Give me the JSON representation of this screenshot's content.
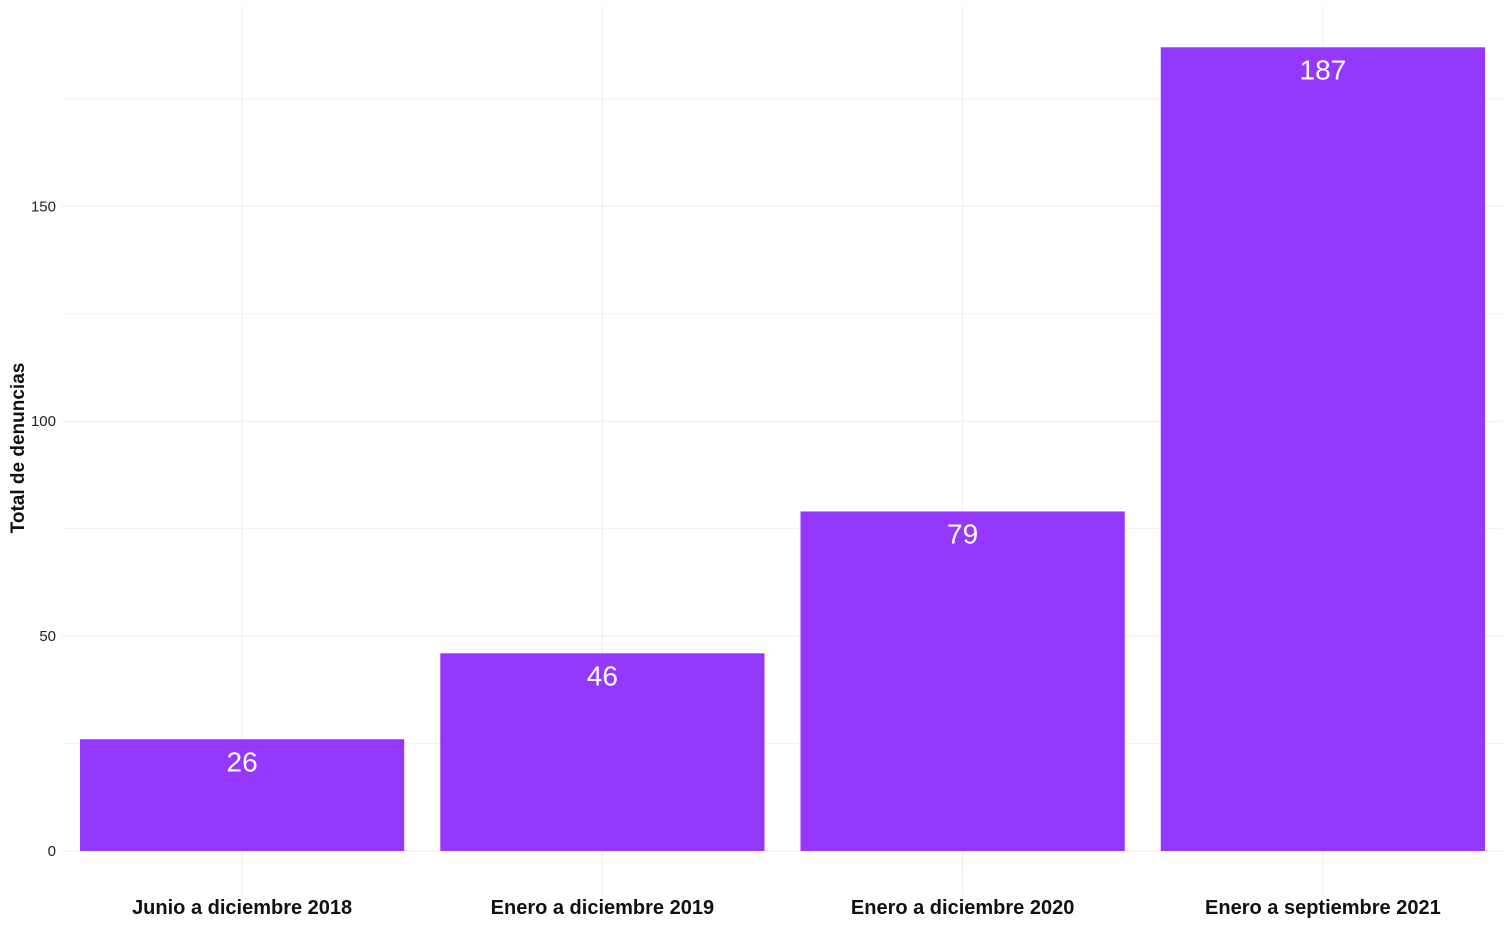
{
  "chart_data": {
    "type": "bar",
    "categories": [
      "Junio a diciembre 2018",
      "Enero a diciembre 2019",
      "Enero a diciembre 2020",
      "Enero a septiembre 2021"
    ],
    "values": [
      26,
      46,
      79,
      187
    ],
    "data_labels": [
      "26",
      "46",
      "79",
      "187"
    ],
    "title": "",
    "xlabel": "",
    "ylabel": "Total de denuncias",
    "ylim": [
      0,
      196
    ],
    "y_ticks": [
      0,
      50,
      100,
      150
    ],
    "y_tick_labels": [
      "0",
      "50",
      "100",
      "150"
    ],
    "grid": true,
    "legend": "none",
    "bar_color": "#9437FF"
  }
}
